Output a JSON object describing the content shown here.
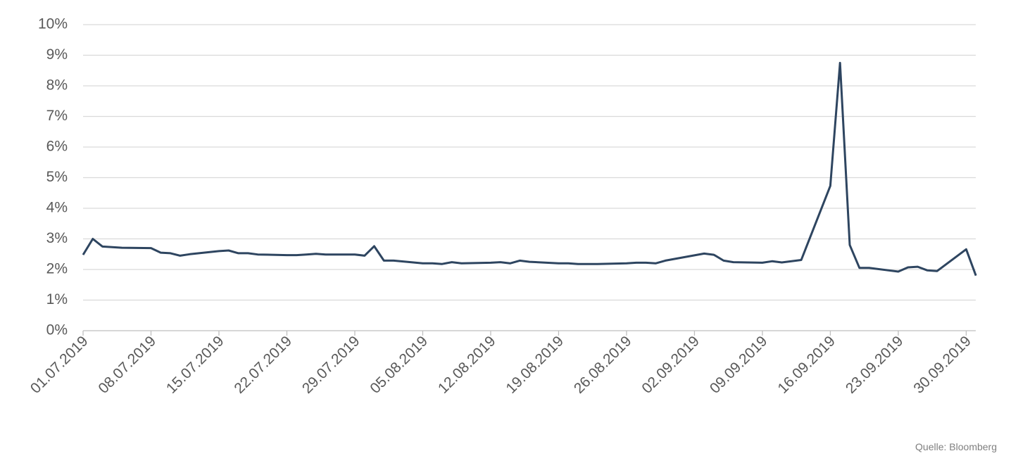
{
  "chart_data": {
    "type": "line",
    "source": "Quelle: Bloomberg",
    "x": [
      "01.07.2019",
      "02.07.2019",
      "03.07.2019",
      "04.07.2019",
      "05.07.2019",
      "08.07.2019",
      "09.07.2019",
      "10.07.2019",
      "11.07.2019",
      "12.07.2019",
      "15.07.2019",
      "16.07.2019",
      "17.07.2019",
      "18.07.2019",
      "19.07.2019",
      "22.07.2019",
      "23.07.2019",
      "24.07.2019",
      "25.07.2019",
      "26.07.2019",
      "29.07.2019",
      "30.07.2019",
      "31.07.2019",
      "01.08.2019",
      "02.08.2019",
      "05.08.2019",
      "06.08.2019",
      "07.08.2019",
      "08.08.2019",
      "09.08.2019",
      "12.08.2019",
      "13.08.2019",
      "14.08.2019",
      "15.08.2019",
      "16.08.2019",
      "19.08.2019",
      "20.08.2019",
      "21.08.2019",
      "22.08.2019",
      "23.08.2019",
      "26.08.2019",
      "27.08.2019",
      "28.08.2019",
      "29.08.2019",
      "30.08.2019",
      "03.09.2019",
      "04.09.2019",
      "05.09.2019",
      "06.09.2019",
      "09.09.2019",
      "10.09.2019",
      "11.09.2019",
      "12.09.2019",
      "13.09.2019",
      "16.09.2019",
      "17.09.2019",
      "18.09.2019",
      "19.09.2019",
      "20.09.2019",
      "23.09.2019",
      "24.09.2019",
      "25.09.2019",
      "26.09.2019",
      "27.09.2019",
      "30.09.2019",
      "01.10.2019"
    ],
    "series": [
      {
        "color": "#2e4560",
        "values": [
          2.48,
          3.0,
          2.75,
          2.73,
          2.71,
          2.7,
          2.55,
          2.53,
          2.45,
          2.5,
          2.6,
          2.62,
          2.53,
          2.53,
          2.49,
          2.47,
          2.47,
          2.49,
          2.51,
          2.49,
          2.49,
          2.45,
          2.76,
          2.29,
          2.29,
          2.2,
          2.2,
          2.18,
          2.24,
          2.2,
          2.22,
          2.24,
          2.2,
          2.29,
          2.25,
          2.2,
          2.2,
          2.18,
          2.18,
          2.18,
          2.2,
          2.22,
          2.22,
          2.2,
          2.29,
          2.52,
          2.48,
          2.29,
          2.24,
          2.22,
          2.27,
          2.23,
          2.27,
          2.31,
          4.73,
          8.75,
          2.8,
          2.05,
          2.05,
          1.93,
          2.07,
          2.09,
          1.97,
          1.95,
          2.66,
          1.8
        ]
      }
    ],
    "xlim": [
      "01.07.2019",
      "02.10.2019"
    ],
    "xticks": [
      "01.07.2019",
      "08.07.2019",
      "15.07.2019",
      "22.07.2019",
      "29.07.2019",
      "05.08.2019",
      "12.08.2019",
      "19.08.2019",
      "26.08.2019",
      "02.09.2019",
      "09.09.2019",
      "16.09.2019",
      "23.09.2019",
      "30.09.2019"
    ],
    "ylim": [
      0,
      10
    ],
    "yticks": [
      {
        "value": 0,
        "label": "0%"
      },
      {
        "value": 1,
        "label": "1%"
      },
      {
        "value": 2,
        "label": "2%"
      },
      {
        "value": 3,
        "label": "3%"
      },
      {
        "value": 4,
        "label": "4%"
      },
      {
        "value": 5,
        "label": "5%"
      },
      {
        "value": 6,
        "label": "6%"
      },
      {
        "value": 7,
        "label": "7%"
      },
      {
        "value": 8,
        "label": "8%"
      },
      {
        "value": 9,
        "label": "9%"
      },
      {
        "value": 10,
        "label": "10%"
      }
    ],
    "grid": true
  }
}
